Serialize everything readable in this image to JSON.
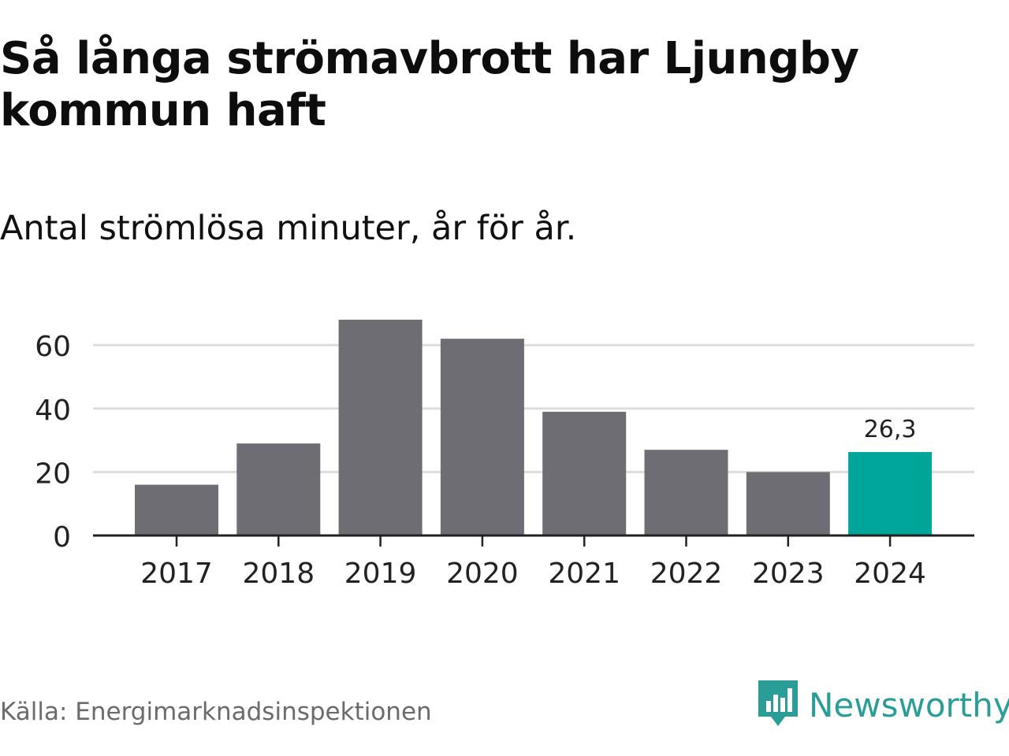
{
  "chart_data": {
    "type": "bar",
    "title": "Så långa strömavbrott har Ljungby kommun haft",
    "subtitle": "Antal strömlösa minuter, år för år.",
    "categories": [
      "2017",
      "2018",
      "2019",
      "2020",
      "2021",
      "2022",
      "2023",
      "2024"
    ],
    "values": [
      16,
      29,
      68,
      62,
      39,
      27,
      20,
      26.3
    ],
    "highlight_index": 7,
    "data_labels": [
      {
        "index": 7,
        "text": "26,3"
      }
    ],
    "ylim": [
      0,
      70
    ],
    "yticks": [
      0,
      20,
      40,
      60
    ],
    "ytick_labels": [
      "0",
      "20",
      "40",
      "60"
    ],
    "xlabel": "",
    "ylabel": "",
    "grid": true,
    "colors": {
      "bar": "#6e6d73",
      "highlight": "#00a59a",
      "grid": "#dddddd",
      "axis": "#222222",
      "text": "#222222"
    }
  },
  "footer": {
    "source": "Källa: Energimarknadsinspektionen",
    "brand": "Newsworthy",
    "brand_icon": "newsworthy-logo-icon",
    "brand_color": "#2a9d96"
  }
}
